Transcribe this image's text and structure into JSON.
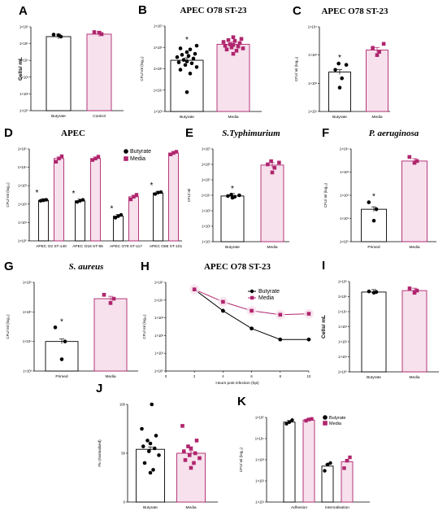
{
  "colors": {
    "butyrate": "#000000",
    "media": "#b0256e",
    "media_fill": "#f6e1ec"
  },
  "chart_data": [
    {
      "panel": "A",
      "type": "bar",
      "title": "",
      "ylabel": "Cells/ mL",
      "yscale": "log",
      "ylim": [
        1,
        1000000
      ],
      "yticks": [
        "1×10⁰",
        "1×10²",
        "1×10³",
        "1×10⁴",
        "1×10⁵",
        "1×10⁶"
      ],
      "categories": [
        "Butyrate",
        "Control"
      ],
      "values": [
        200000,
        300000
      ],
      "points": [
        [
          250000,
          200000,
          280000
        ],
        [
          380000,
          300000,
          420000
        ]
      ],
      "significance": [
        "",
        ""
      ]
    },
    {
      "panel": "B",
      "type": "bar",
      "title": "APEC O78 ST-23",
      "ylabel": "CFU/ ml (log₁₀)",
      "yscale": "log",
      "ylim": [
        1000,
        10000000
      ],
      "yticks": [
        "1×10³",
        "1×10⁴",
        "1×10⁵",
        "1×10⁶",
        "1×10⁷"
      ],
      "categories": [
        "Butyrate",
        "Media"
      ],
      "values": [
        250000,
        1400000
      ],
      "points": [
        [
          8000,
          60000,
          90000,
          120000,
          150000,
          180000,
          200000,
          220000,
          260000,
          300000,
          350000,
          400000,
          450000,
          500000,
          600000,
          800000,
          900000,
          1200000
        ],
        [
          500000,
          700000,
          800000,
          900000,
          1000000,
          1100000,
          1200000,
          1300000,
          1400000,
          1600000,
          1800000,
          2000000,
          2200000,
          2500000,
          3000000
        ]
      ],
      "significance": [
        "*",
        ""
      ]
    },
    {
      "panel": "C",
      "type": "bar",
      "title": "APEC O78 ST-23",
      "ylabel": "CFU/ ml (log₁₀)",
      "yscale": "log",
      "ylim": [
        10,
        10000
      ],
      "yticks": [
        "1×10¹",
        "1×10²",
        "1×10³",
        "1×10⁴"
      ],
      "categories": [
        "Butyrate",
        "Media"
      ],
      "values": [
        250,
        1500
      ],
      "points": [
        [
          70,
          150,
          300,
          450,
          500
        ],
        [
          1000,
          1300,
          1800,
          2500
        ]
      ],
      "significance": [
        "*",
        ""
      ]
    },
    {
      "panel": "D",
      "type": "bar",
      "title": "APEC",
      "ylabel": "CFU/ ml (log₁₀)",
      "yscale": "log",
      "ylim": [
        1,
        100000
      ],
      "yticks": [
        "1×10⁰",
        "1×10¹",
        "1×10²",
        "1×10³",
        "1×10⁴",
        "1×10⁵"
      ],
      "categories": [
        "APEC O2 ST-140",
        "APEC O18 ST-95",
        "APEC O78 ST-117",
        "APEC O86 ST-101"
      ],
      "series": [
        {
          "name": "Butyrate",
          "values": [
            160,
            150,
            22,
            400
          ],
          "points": [
            [
              150,
              160,
              170
            ],
            [
              130,
              150,
              170
            ],
            [
              18,
              22,
              26
            ],
            [
              350,
              420,
              450
            ]
          ]
        },
        {
          "name": "Media",
          "values": [
            30000,
            30000,
            250,
            60000
          ],
          "points": [
            [
              20000,
              30000,
              40000
            ],
            [
              25000,
              30000,
              38000
            ],
            [
              180,
              250,
              320
            ],
            [
              50000,
              60000,
              70000
            ]
          ]
        }
      ],
      "significance": [
        "*",
        "*",
        "*",
        "*"
      ]
    },
    {
      "panel": "E",
      "type": "bar",
      "title": "S.Typhimurium",
      "ylabel": "CFU/ ml",
      "yscale": "log",
      "ylim": [
        10,
        10000000
      ],
      "yticks": [
        "1×10¹",
        "1×10²",
        "1×10³",
        "1×10⁴",
        "1×10⁵",
        "1×10⁶",
        "1×10⁷"
      ],
      "categories": [
        "Butyrate",
        "Media"
      ],
      "values": [
        9000,
        900000
      ],
      "points": [
        [
          7000,
          8000,
          9000,
          10000,
          11000
        ],
        [
          300000,
          600000,
          1000000,
          1300000,
          1600000
        ]
      ],
      "significance": [
        "*",
        ""
      ]
    },
    {
      "panel": "F",
      "type": "bar",
      "title": "P. aeruginosa",
      "ylabel": "CFU/ ml (log₁₀)",
      "yscale": "log",
      "ylim": [
        1,
        10000
      ],
      "yticks": [
        "1×10⁰",
        "1×10¹",
        "1×10²",
        "1×10³",
        "1×10⁴"
      ],
      "categories": [
        "Primed",
        "Media"
      ],
      "values": [
        25,
        3000
      ],
      "points": [
        [
          8,
          25,
          50
        ],
        [
          2500,
          3000,
          4500
        ]
      ],
      "significance": [
        "*",
        ""
      ]
    },
    {
      "panel": "G",
      "type": "bar",
      "title": "S. aureus",
      "ylabel": "CFU/ ml (log₁₀)",
      "yscale": "log",
      "ylim": [
        1000,
        1000000
      ],
      "yticks": [
        "1×10³",
        "1×10⁴",
        "1×10⁵",
        "1×10⁶"
      ],
      "categories": [
        "Primed",
        "Media"
      ],
      "values": [
        10000,
        280000
      ],
      "points": [
        [
          2500,
          10000,
          30000
        ],
        [
          200000,
          280000,
          380000
        ]
      ],
      "significance": [
        "*",
        ""
      ]
    },
    {
      "panel": "H",
      "type": "line",
      "title": "APEC O78 ST-23",
      "ylabel": "CFU/ ml (log₁₀)",
      "xlabel": "Hours post infection (hpi)",
      "yscale": "log",
      "ylim": [
        1,
        100000
      ],
      "yticks": [
        "1×10⁰",
        "1×10¹",
        "1×10²",
        "1×10³",
        "1×10⁴",
        "1×10⁵"
      ],
      "xlim": [
        0,
        10
      ],
      "xticks": [
        "0",
        "2",
        "4",
        "6",
        "8",
        "10"
      ],
      "x": [
        2,
        4,
        6,
        8,
        10
      ],
      "series": [
        {
          "name": "Butyrate",
          "values": [
            40000,
            2500,
            250,
            60,
            60
          ]
        },
        {
          "name": "Media",
          "values": [
            40000,
            8000,
            2500,
            1500,
            1700
          ]
        }
      ]
    },
    {
      "panel": "I",
      "type": "bar",
      "title": "",
      "ylabel": "Cells/ mL",
      "yscale": "log",
      "ylim": [
        1,
        1000000
      ],
      "yticks": [
        "1×10⁰",
        "1×10¹",
        "1×10²",
        "1×10³",
        "1×10⁴",
        "1×10⁵",
        "1×10⁶"
      ],
      "categories": [
        "Butyrate",
        "Media"
      ],
      "values": [
        200000,
        250000
      ],
      "points": [
        [
          180000,
          200000,
          220000
        ],
        [
          180000,
          250000,
          350000
        ]
      ],
      "significance": [
        "",
        ""
      ]
    },
    {
      "panel": "J",
      "type": "bar",
      "title": "",
      "ylabel": "Flu (Normalised)",
      "yscale": "linear",
      "ylim": [
        0,
        100
      ],
      "yticks": [
        "0",
        "50",
        "100"
      ],
      "categories": [
        "Butyrate",
        "Media"
      ],
      "values": [
        54,
        50
      ],
      "points": [
        [
          30,
          33,
          40,
          48,
          52,
          55,
          57,
          60,
          63,
          68,
          75,
          100
        ],
        [
          35,
          40,
          43,
          45,
          48,
          50,
          52,
          55,
          57,
          63,
          78
        ]
      ],
      "significance": [
        "",
        ""
      ]
    },
    {
      "panel": "K",
      "type": "bar",
      "title": "",
      "ylabel": "CFU/ ml (log₁₀)",
      "yscale": "log",
      "ylim": [
        10,
        100000
      ],
      "yticks": [
        "1×10¹",
        "1×10²",
        "1×10³",
        "1×10⁴",
        "1×10⁵"
      ],
      "categories": [
        "Adhesion",
        "Internalisation"
      ],
      "series": [
        {
          "name": "Butyrate",
          "values": [
            60000,
            500
          ],
          "points": [
            [
              50000,
              60000,
              75000
            ],
            [
              300,
              600,
              700
            ]
          ]
        },
        {
          "name": "Media",
          "values": [
            75000,
            800
          ],
          "points": [
            [
              70000,
              80000,
              85000
            ],
            [
              400,
              900,
              1300
            ]
          ]
        }
      ]
    }
  ]
}
